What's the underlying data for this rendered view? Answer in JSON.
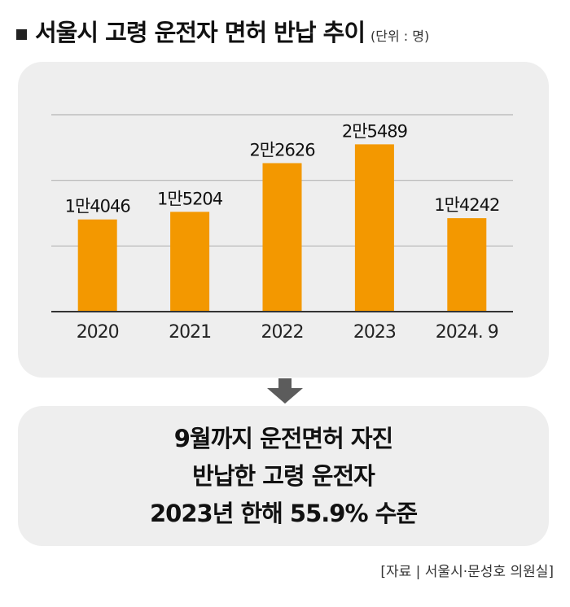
{
  "header": {
    "title": "서울시 고령 운전자 면허 반납 추이",
    "unit": "(단위 : 명)"
  },
  "chart_data": {
    "type": "bar",
    "categories": [
      "2020",
      "2021",
      "2022",
      "2023",
      "2024. 9"
    ],
    "values": [
      14046,
      15204,
      22626,
      25489,
      14242
    ],
    "value_labels": [
      "1만4046",
      "1만5204",
      "2만2626",
      "2만5489",
      "1만4242"
    ],
    "title": "서울시 고령 운전자 면허 반납 추이",
    "xlabel": "",
    "ylabel": "",
    "ylim": [
      0,
      30000
    ],
    "grid": true,
    "legend": "none",
    "colors": {
      "bar": "#f39800",
      "grid": "#b5b5b5",
      "axis": "#333333"
    }
  },
  "summary": {
    "lines": [
      "9월까지 운전면허 자진",
      "반납한 고령 운전자",
      "2023년 한해 55.9% 수준"
    ]
  },
  "source": "[자료 | 서울시·문성호 의원실]",
  "colors": {
    "panel": "#eeeeee",
    "arrow": "#5c5c5c"
  }
}
